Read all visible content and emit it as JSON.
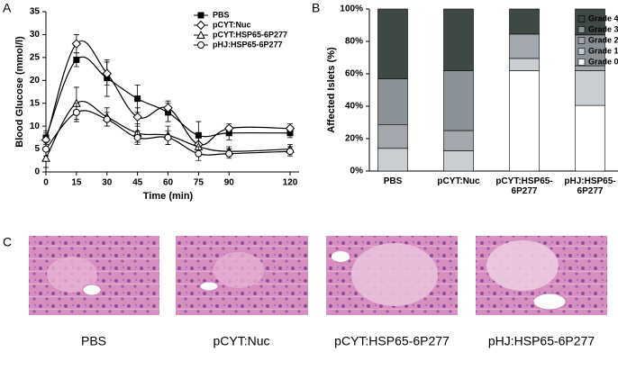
{
  "panel_labels": [
    "A",
    "B",
    "C"
  ],
  "chart_data": [
    {
      "type": "line",
      "xlabel": "Time (min)",
      "ylabel": "Blood Glucose (mmol/l)",
      "x": [
        0,
        15,
        30,
        45,
        60,
        75,
        90,
        120
      ],
      "xlim": [
        0,
        120
      ],
      "xticks": [
        0,
        15,
        30,
        45,
        60,
        75,
        90,
        120
      ],
      "ylim": [
        0,
        35
      ],
      "yticks": [
        0,
        5,
        10,
        15,
        20,
        25,
        30,
        35
      ],
      "series": [
        {
          "name": "PBS",
          "color": "#000000",
          "marker": "square",
          "values": [
            7.5,
            24.5,
            20.5,
            16,
            13,
            8,
            8.5,
            8.5
          ],
          "errors": [
            1.5,
            1.5,
            4,
            3,
            2,
            3,
            1.5,
            1
          ]
        },
        {
          "name": "pCYT:Nuc",
          "color": "#000000",
          "marker": "diamond",
          "values": [
            7,
            28,
            21.5,
            12,
            14,
            6,
            9.5,
            9.5
          ],
          "errors": [
            1.5,
            2,
            2.5,
            2,
            1.5,
            2,
            1,
            1
          ]
        },
        {
          "name": "pCYT:HSP65-6P277",
          "color": "#000000",
          "marker": "triangle",
          "values": [
            3,
            15,
            12,
            8.5,
            8,
            5.5,
            4.5,
            5
          ],
          "errors": [
            2,
            3.5,
            2,
            2,
            2,
            2,
            1,
            1
          ]
        },
        {
          "name": "pHJ:HSP65-6P277",
          "color": "#000000",
          "marker": "circle",
          "values": [
            5,
            13,
            11.5,
            7.5,
            7.5,
            4,
            4,
            4.5
          ],
          "errors": [
            1.5,
            2,
            1.5,
            1.5,
            1.5,
            1.5,
            1,
            1
          ]
        }
      ]
    },
    {
      "type": "stacked_bar",
      "ylabel": "Affected Islets (%)",
      "categories": [
        "PBS",
        "pCYT:Nuc",
        "pCYT:HSP65-6P277",
        "pHJ:HSP65-6P277"
      ],
      "ylim": [
        0,
        100
      ],
      "yticks": [
        {
          "value": 0,
          "label": "0%"
        },
        {
          "value": 20,
          "label": "20%"
        },
        {
          "value": 40,
          "label": "40%"
        },
        {
          "value": 60,
          "label": "60%"
        },
        {
          "value": 80,
          "label": "80%"
        },
        {
          "value": 100,
          "label": "100%"
        }
      ],
      "series": [
        {
          "name": "Grade 0",
          "color": "#ffffff",
          "values": [
            0,
            0,
            62,
            40.5
          ]
        },
        {
          "name": "Grade 1",
          "color": "#c9ced2",
          "values": [
            14,
            12.5,
            7.5,
            21.5
          ]
        },
        {
          "name": "Grade 2",
          "color": "#a2a8ad",
          "values": [
            14.5,
            12.5,
            15,
            3
          ]
        },
        {
          "name": "Grade 3",
          "color": "#8a9298",
          "values": [
            28.5,
            37,
            0,
            19
          ]
        },
        {
          "name": "Grade 4",
          "color": "#3e4845",
          "values": [
            43,
            38,
            15.5,
            16
          ]
        }
      ]
    }
  ],
  "micrographs": [
    "PBS",
    "pCYT:Nuc",
    "pCYT:HSP65-6P277",
    "pHJ:HSP65-6P277"
  ]
}
